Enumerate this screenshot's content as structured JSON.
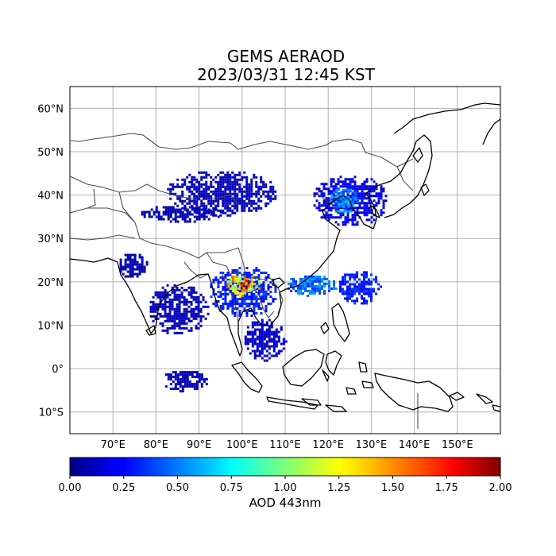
{
  "figure": {
    "title_line1": "GEMS AERAOD",
    "title_line2": "2023/03/31 12:45 KST"
  },
  "map": {
    "lon_range": [
      60,
      160
    ],
    "lat_range": [
      -15,
      65
    ],
    "grid": true,
    "lon_ticks": [
      {
        "value": 70,
        "label": "70°E"
      },
      {
        "value": 80,
        "label": "80°E"
      },
      {
        "value": 90,
        "label": "90°E"
      },
      {
        "value": 100,
        "label": "100°E"
      },
      {
        "value": 110,
        "label": "110°E"
      },
      {
        "value": 120,
        "label": "120°E"
      },
      {
        "value": 130,
        "label": "130°E"
      },
      {
        "value": 140,
        "label": "140°E"
      },
      {
        "value": 150,
        "label": "150°E"
      }
    ],
    "lat_ticks": [
      {
        "value": 60,
        "label": "60°N"
      },
      {
        "value": 50,
        "label": "50°N"
      },
      {
        "value": 40,
        "label": "40°N"
      },
      {
        "value": 30,
        "label": "30°N"
      },
      {
        "value": 20,
        "label": "20°N"
      },
      {
        "value": 10,
        "label": "10°N"
      },
      {
        "value": 0,
        "label": "0°"
      },
      {
        "value": -10,
        "label": "10°S"
      }
    ],
    "coastline_color": "#000000",
    "border_color": "#4d4d4d",
    "grid_color": "#b0b0b0",
    "aod_patches": [
      {
        "lon": [
          82,
          108
        ],
        "lat": [
          35.5,
          46
        ],
        "aod": 0.12
      },
      {
        "lon": [
          76,
          95
        ],
        "lat": [
          34,
          38
        ],
        "aod": 0.1
      },
      {
        "lon": [
          116,
          134
        ],
        "lat": [
          33,
          45
        ],
        "aod": 0.2
      },
      {
        "lon": [
          120,
          127
        ],
        "lat": [
          36,
          42
        ],
        "aod": 0.5
      },
      {
        "lon": [
          71,
          78
        ],
        "lat": [
          21,
          27
        ],
        "aod": 0.1
      },
      {
        "lon": [
          78,
          92
        ],
        "lat": [
          8,
          20
        ],
        "aod": 0.12
      },
      {
        "lon": [
          92,
          108
        ],
        "lat": [
          12,
          24
        ],
        "aod": 0.3
      },
      {
        "lon": [
          96,
          104
        ],
        "lat": [
          17,
          22
        ],
        "aod": 1.2
      },
      {
        "lon": [
          98.5,
          102
        ],
        "lat": [
          18,
          21
        ],
        "aod": 1.9
      },
      {
        "lon": [
          110,
          122
        ],
        "lat": [
          17,
          22
        ],
        "aod": 0.45
      },
      {
        "lon": [
          122,
          132
        ],
        "lat": [
          15,
          23
        ],
        "aod": 0.3
      },
      {
        "lon": [
          100,
          110
        ],
        "lat": [
          2,
          12
        ],
        "aod": 0.15
      },
      {
        "lon": [
          81,
          92
        ],
        "lat": [
          -5,
          0
        ],
        "aod": 0.12
      }
    ]
  },
  "colorbar": {
    "label": "AOD 443nm",
    "min": 0,
    "max": 2,
    "colormap": "jet",
    "tick_values": [
      0,
      0.25,
      0.5,
      0.75,
      1.0,
      1.25,
      1.5,
      1.75,
      2.0
    ],
    "tick_labels": [
      "0.00",
      "0.25",
      "0.50",
      "0.75",
      "1.00",
      "1.25",
      "1.50",
      "1.75",
      "2.00"
    ]
  }
}
